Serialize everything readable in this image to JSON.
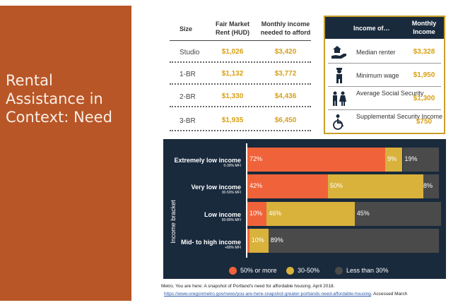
{
  "slide": {
    "title": "Rental Assistance in Context: Need"
  },
  "rent_table": {
    "headers": {
      "size": "Size",
      "fmr": "Fair Market Rent (HUD)",
      "need": "Monthly income needed to afford"
    },
    "rows": [
      {
        "size": "Studio",
        "fmr": "$1,026",
        "need": "$3,420"
      },
      {
        "size": "1-BR",
        "fmr": "$1,132",
        "need": "$3,772"
      },
      {
        "size": "2-BR",
        "fmr": "$1,330",
        "need": "$4,436"
      },
      {
        "size": "3-BR",
        "fmr": "$1,935",
        "need": "$6,450"
      }
    ]
  },
  "income_box": {
    "header_label": "Income of…",
    "header_monthly": "Monthly Income",
    "rows": [
      {
        "icon": "house-hand-icon",
        "label": "Median renter",
        "value": "$3,328"
      },
      {
        "icon": "worker-icon",
        "label": "Minimum wage",
        "value": "$1,950"
      },
      {
        "icon": "family-icon",
        "label": "Average Social Security",
        "value": "$1,300"
      },
      {
        "icon": "wheelchair-icon",
        "label": "Supplemental Security Income",
        "value": "$750"
      }
    ]
  },
  "chart_data": {
    "type": "bar",
    "orientation": "horizontal-stacked",
    "ylabel": "Income bracket",
    "categories": [
      "Extremely low income",
      "Very low income",
      "Low income",
      "Mid- to high income"
    ],
    "category_subs": [
      "0-30% MFI",
      "30-50% MFI",
      "50-80% MFI",
      "+80% MFI"
    ],
    "series": [
      {
        "name": "50% or more",
        "color": "#f0633a",
        "values": [
          72,
          42,
          10,
          1
        ]
      },
      {
        "name": "30-50%",
        "color": "#d9b23c",
        "values": [
          9,
          50,
          46,
          10
        ]
      },
      {
        "name": "Less than 30%",
        "color": "#4a4a4a",
        "values": [
          19,
          8,
          45,
          89
        ]
      }
    ],
    "labels": [
      [
        "72%",
        "9%",
        "19%"
      ],
      [
        "42%",
        "50%",
        "8%"
      ],
      [
        "10%",
        "46%",
        "45%"
      ],
      [
        "",
        "10%",
        "89%"
      ]
    ]
  },
  "source": {
    "citation": "Metro. You are here: A snapshot of Portland's need for affordable housing. April 2018.",
    "url": "https://www.oregonmetro.gov/news/you-are-here-snapshot-greater-portlands-need-affordable-housing",
    "tail": ". Accessed March"
  }
}
